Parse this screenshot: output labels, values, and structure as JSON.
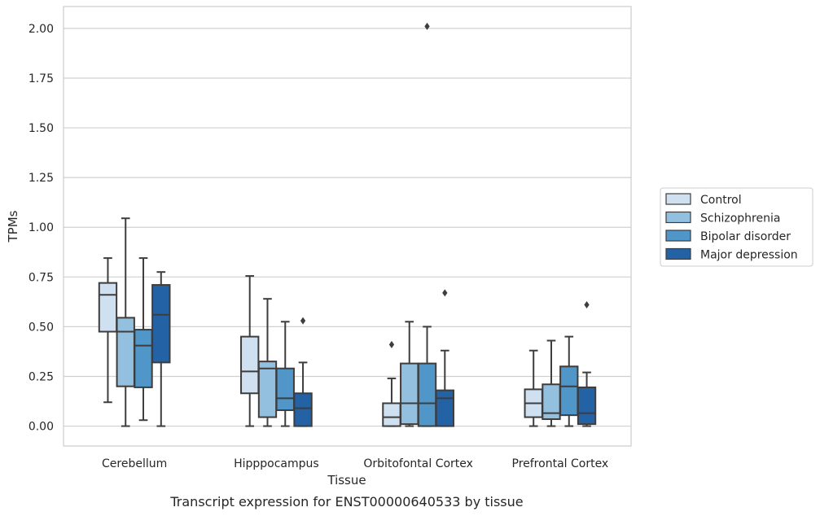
{
  "chart_data": {
    "type": "box",
    "caption": "Transcript expression for ENST00000640533 by tissue",
    "xlabel": "Tissue",
    "ylabel": "TPMs",
    "ylim": [
      -0.1,
      2.11
    ],
    "yticks": [
      0.0,
      0.25,
      0.5,
      0.75,
      1.0,
      1.25,
      1.5,
      1.75,
      2.0
    ],
    "ytick_labels": [
      "0.00",
      "0.25",
      "0.50",
      "0.75",
      "1.00",
      "1.25",
      "1.50",
      "1.75",
      "2.00"
    ],
    "grid": "horizontal",
    "legend_position": "right",
    "categories": [
      "Cerebellum",
      "Hipppocampus",
      "Orbitofontal Cortex",
      "Prefrontal Cortex"
    ],
    "series": [
      {
        "name": "Control",
        "color": "#cfe0f1",
        "boxes": [
          {
            "whislo": 0.12,
            "q1": 0.475,
            "med": 0.66,
            "q3": 0.72,
            "whishi": 0.845,
            "fliers": []
          },
          {
            "whislo": 0.0,
            "q1": 0.165,
            "med": 0.275,
            "q3": 0.45,
            "whishi": 0.755,
            "fliers": []
          },
          {
            "whislo": 0.0,
            "q1": 0.0,
            "med": 0.045,
            "q3": 0.115,
            "whishi": 0.24,
            "fliers": [
              0.41
            ]
          },
          {
            "whislo": 0.0,
            "q1": 0.045,
            "med": 0.115,
            "q3": 0.185,
            "whishi": 0.38,
            "fliers": []
          }
        ]
      },
      {
        "name": "Schizophrenia",
        "color": "#93c0de",
        "boxes": [
          {
            "whislo": 0.0,
            "q1": 0.2,
            "med": 0.475,
            "q3": 0.545,
            "whishi": 1.045,
            "fliers": []
          },
          {
            "whislo": 0.0,
            "q1": 0.045,
            "med": 0.29,
            "q3": 0.325,
            "whishi": 0.64,
            "fliers": []
          },
          {
            "whislo": 0.0,
            "q1": 0.01,
            "med": 0.115,
            "q3": 0.315,
            "whishi": 0.525,
            "fliers": []
          },
          {
            "whislo": 0.0,
            "q1": 0.035,
            "med": 0.065,
            "q3": 0.21,
            "whishi": 0.43,
            "fliers": []
          }
        ]
      },
      {
        "name": "Bipolar disorder",
        "color": "#5096c8",
        "boxes": [
          {
            "whislo": 0.03,
            "q1": 0.195,
            "med": 0.405,
            "q3": 0.485,
            "whishi": 0.845,
            "fliers": []
          },
          {
            "whislo": 0.0,
            "q1": 0.08,
            "med": 0.14,
            "q3": 0.29,
            "whishi": 0.525,
            "fliers": []
          },
          {
            "whislo": 0.0,
            "q1": 0.0,
            "med": 0.115,
            "q3": 0.315,
            "whishi": 0.5,
            "fliers": [
              2.01
            ]
          },
          {
            "whislo": 0.0,
            "q1": 0.055,
            "med": 0.2,
            "q3": 0.3,
            "whishi": 0.45,
            "fliers": []
          }
        ]
      },
      {
        "name": "Major depression",
        "color": "#2462a6",
        "boxes": [
          {
            "whislo": 0.0,
            "q1": 0.32,
            "med": 0.56,
            "q3": 0.71,
            "whishi": 0.775,
            "fliers": []
          },
          {
            "whislo": 0.0,
            "q1": 0.0,
            "med": 0.09,
            "q3": 0.165,
            "whishi": 0.32,
            "fliers": [
              0.53
            ]
          },
          {
            "whislo": 0.0,
            "q1": 0.0,
            "med": 0.14,
            "q3": 0.18,
            "whishi": 0.38,
            "fliers": [
              0.67
            ]
          },
          {
            "whislo": 0.0,
            "q1": 0.01,
            "med": 0.065,
            "q3": 0.195,
            "whishi": 0.27,
            "fliers": [
              0.61
            ]
          }
        ]
      }
    ]
  }
}
